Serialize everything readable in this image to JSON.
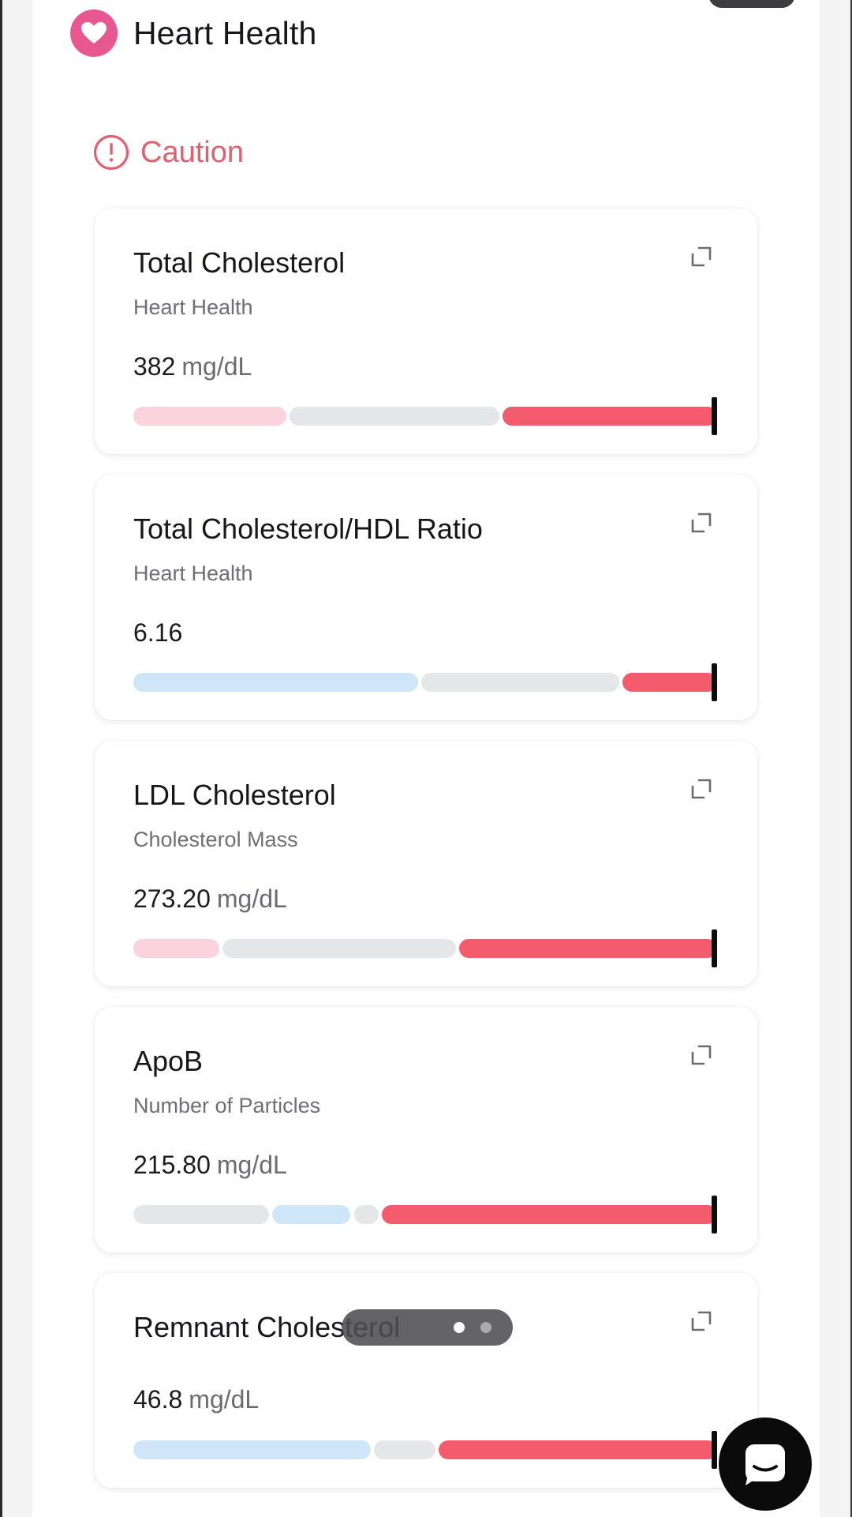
{
  "section": {
    "title": "Heart Health",
    "icon": "heart-icon",
    "badge_color": "#e8578f"
  },
  "status": {
    "label": "Caution",
    "icon": "alert-circle-icon",
    "color": "#e06070"
  },
  "colors": {
    "red": "#f45b6c",
    "light_pink": "#fbd3dc",
    "gray": "#e5e6e8",
    "light_blue": "#cfe5f8",
    "marker": "#0d0d0f"
  },
  "cards": [
    {
      "title": "Total Cholesterol",
      "subtitle": "Heart Health",
      "value": "382",
      "unit": "mg/dL",
      "icon": "expand-icon",
      "range_bar": {
        "segments": [
          {
            "color": "light_pink",
            "fraction": 0.265
          },
          {
            "color": "gray",
            "fraction": 0.365
          },
          {
            "color": "red",
            "fraction": 0.37
          }
        ],
        "marker_fraction": 0.995
      }
    },
    {
      "title": "Total Cholesterol/HDL Ratio",
      "subtitle": "Heart Health",
      "value": "6.16",
      "unit": "",
      "icon": "expand-icon",
      "range_bar": {
        "segments": [
          {
            "color": "light_blue",
            "fraction": 0.49
          },
          {
            "color": "gray",
            "fraction": 0.345
          },
          {
            "color": "red",
            "fraction": 0.165
          }
        ],
        "marker_fraction": 0.995
      }
    },
    {
      "title": "LDL Cholesterol",
      "subtitle": "Cholesterol Mass",
      "value": "273.20",
      "unit": "mg/dL",
      "icon": "expand-icon",
      "range_bar": {
        "segments": [
          {
            "color": "light_pink",
            "fraction": 0.15
          },
          {
            "color": "gray",
            "fraction": 0.405
          },
          {
            "color": "red",
            "fraction": 0.445
          }
        ],
        "marker_fraction": 0.995
      }
    },
    {
      "title": "ApoB",
      "subtitle": "Number of Particles",
      "value": "215.80",
      "unit": "mg/dL",
      "icon": "expand-icon",
      "range_bar": {
        "segments": [
          {
            "color": "gray",
            "fraction": 0.235
          },
          {
            "color": "light_blue",
            "fraction": 0.14
          },
          {
            "color": "gray",
            "fraction": 0.048
          },
          {
            "color": "red",
            "fraction": 0.577
          }
        ],
        "marker_fraction": 0.995
      }
    },
    {
      "title": "Remnant Cholesterol",
      "subtitle": "",
      "value": "46.8",
      "unit": "mg/dL",
      "icon": "expand-icon",
      "range_bar": {
        "segments": [
          {
            "color": "light_blue",
            "fraction": 0.41
          },
          {
            "color": "gray",
            "fraction": 0.11
          },
          {
            "color": "red",
            "fraction": 0.48
          }
        ],
        "marker_fraction": 0.995
      }
    }
  ],
  "pager": {
    "page_count": 2,
    "active_index": 0
  },
  "chat": {
    "icon": "chat-bubble-icon"
  }
}
